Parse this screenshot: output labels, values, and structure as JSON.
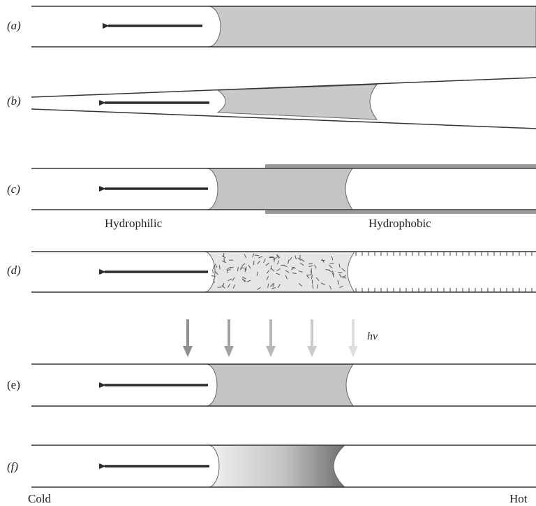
{
  "panels": [
    {
      "id": "a",
      "label": "(a)"
    },
    {
      "id": "b",
      "label": "(b)"
    },
    {
      "id": "c",
      "label": "(c)"
    },
    {
      "id": "d",
      "label": "(d)"
    },
    {
      "id": "e",
      "label": "(e)"
    },
    {
      "id": "f",
      "label": "(f)"
    }
  ],
  "annotations": {
    "hydrophilic": "Hydrophilic",
    "hydrophobic": "Hydrophobic",
    "light": "hv",
    "cold": "Cold",
    "hot": "Hot"
  },
  "colors": {
    "liquid": "#c9c9c9",
    "liquid_dark": "#aeaeae",
    "wall": "#555555",
    "arrow": "#2b2b2b"
  }
}
